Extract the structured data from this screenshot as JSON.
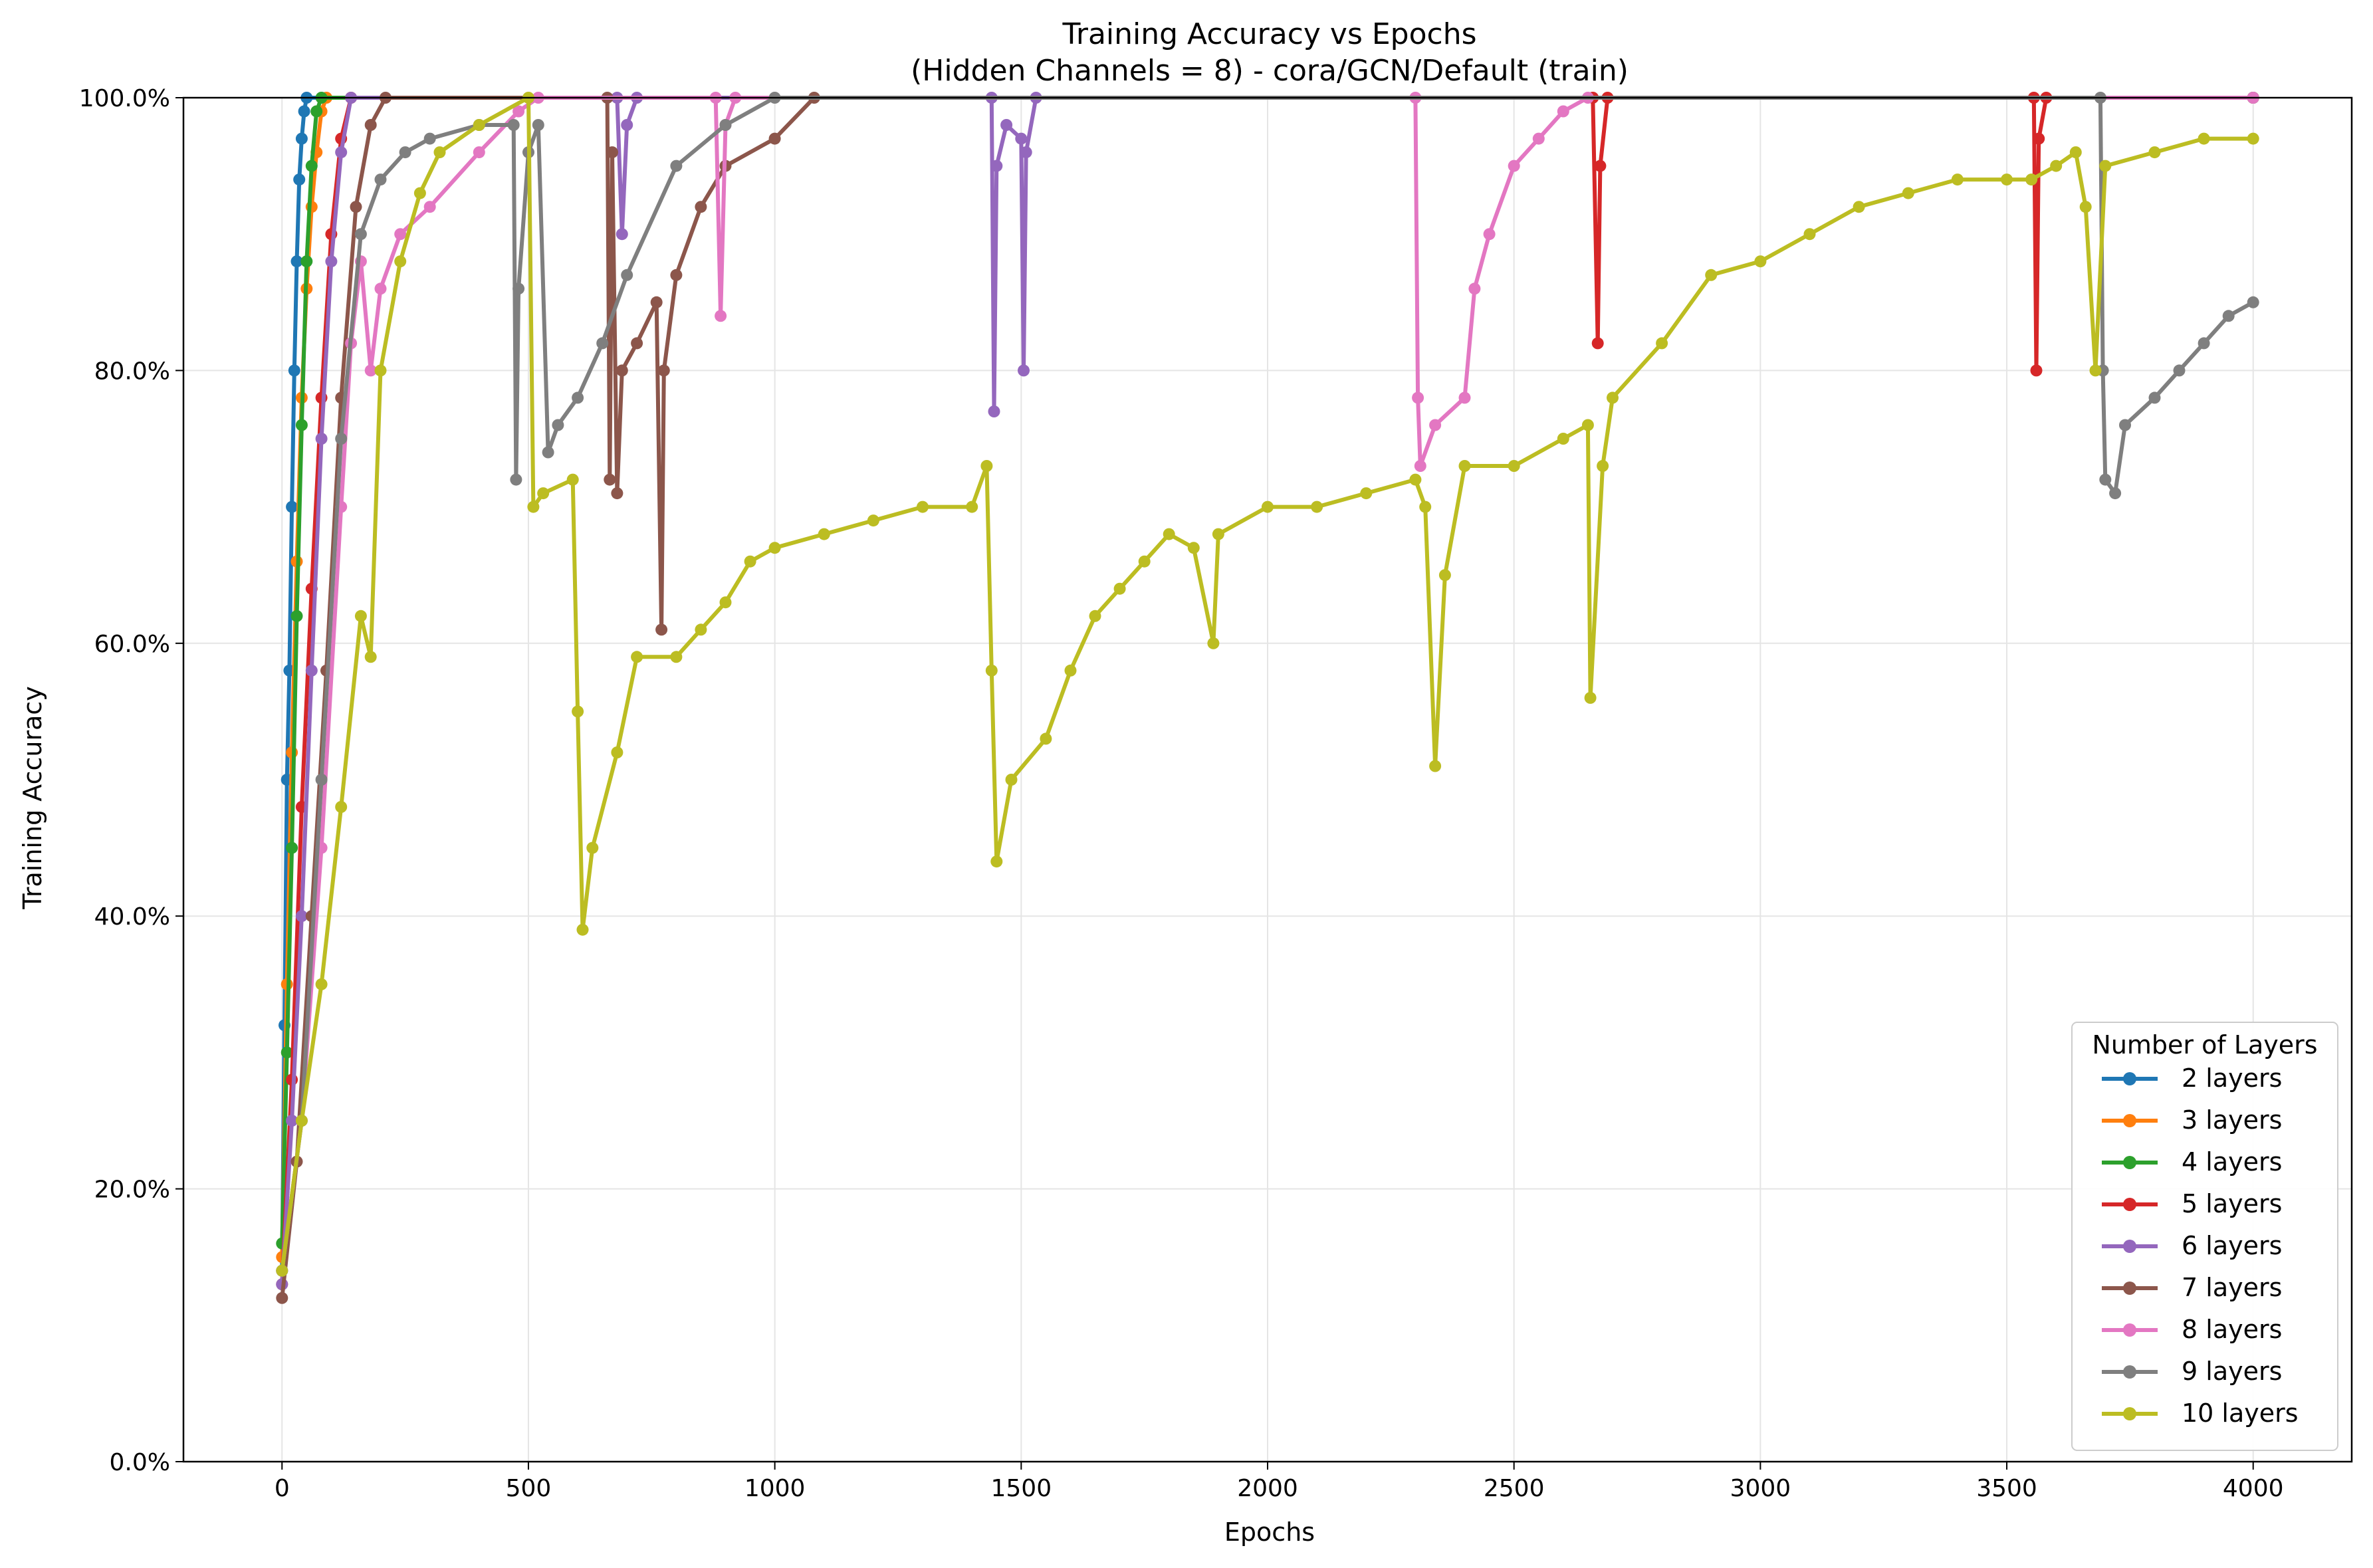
{
  "chart_data": {
    "type": "line",
    "title_line1": "Training Accuracy vs Epochs",
    "title_line2": "(Hidden Channels = 8) - cora/GCN/Default (train)",
    "xlabel": "Epochs",
    "ylabel": "Training Accuracy",
    "xlim": [
      -200,
      4200
    ],
    "ylim": [
      0,
      100
    ],
    "x_ticks": [
      0,
      500,
      1000,
      1500,
      2000,
      2500,
      3000,
      3500,
      4000
    ],
    "x_tick_labels": [
      "0",
      "500",
      "1000",
      "1500",
      "2000",
      "2500",
      "3000",
      "3500",
      "4000"
    ],
    "y_ticks": [
      0,
      20,
      40,
      60,
      80,
      100
    ],
    "y_tick_labels": [
      "0.0%",
      "20.0%",
      "40.0%",
      "60.0%",
      "80.0%",
      "100.0%"
    ],
    "grid": true,
    "legend": {
      "title": "Number of Layers",
      "placement": "lower-right"
    },
    "series": [
      {
        "name": "2 layers",
        "color": "#1f77b4",
        "points": [
          [
            0,
            14
          ],
          [
            5,
            32
          ],
          [
            10,
            50
          ],
          [
            15,
            58
          ],
          [
            20,
            70
          ],
          [
            25,
            80
          ],
          [
            30,
            88
          ],
          [
            35,
            94
          ],
          [
            40,
            97
          ],
          [
            45,
            99
          ],
          [
            50,
            100
          ],
          [
            4000,
            100
          ]
        ]
      },
      {
        "name": "3 layers",
        "color": "#ff7f0e",
        "points": [
          [
            0,
            15
          ],
          [
            10,
            35
          ],
          [
            20,
            52
          ],
          [
            30,
            66
          ],
          [
            40,
            78
          ],
          [
            50,
            86
          ],
          [
            60,
            92
          ],
          [
            70,
            96
          ],
          [
            80,
            99
          ],
          [
            90,
            100
          ],
          [
            4000,
            100
          ]
        ]
      },
      {
        "name": "4 layers",
        "color": "#2ca02c",
        "points": [
          [
            0,
            16
          ],
          [
            10,
            30
          ],
          [
            20,
            45
          ],
          [
            30,
            62
          ],
          [
            40,
            76
          ],
          [
            50,
            88
          ],
          [
            60,
            95
          ],
          [
            70,
            99
          ],
          [
            80,
            100
          ],
          [
            4000,
            100
          ]
        ]
      },
      {
        "name": "5 layers",
        "color": "#d62728",
        "points": [
          [
            0,
            13
          ],
          [
            20,
            28
          ],
          [
            40,
            48
          ],
          [
            60,
            64
          ],
          [
            80,
            78
          ],
          [
            100,
            90
          ],
          [
            120,
            97
          ],
          [
            140,
            100
          ],
          [
            2660,
            100
          ],
          [
            2670,
            82
          ],
          [
            2675,
            95
          ],
          [
            2690,
            100
          ],
          [
            3555,
            100
          ],
          [
            3560,
            80
          ],
          [
            3565,
            97
          ],
          [
            3580,
            100
          ],
          [
            4000,
            100
          ]
        ]
      },
      {
        "name": "6 layers",
        "color": "#9467bd",
        "points": [
          [
            0,
            13
          ],
          [
            20,
            25
          ],
          [
            40,
            40
          ],
          [
            60,
            58
          ],
          [
            80,
            75
          ],
          [
            100,
            88
          ],
          [
            120,
            96
          ],
          [
            140,
            100
          ],
          [
            680,
            100
          ],
          [
            690,
            90
          ],
          [
            700,
            98
          ],
          [
            720,
            100
          ],
          [
            1440,
            100
          ],
          [
            1445,
            77
          ],
          [
            1450,
            95
          ],
          [
            1470,
            98
          ],
          [
            1500,
            97
          ],
          [
            1505,
            80
          ],
          [
            1510,
            96
          ],
          [
            1530,
            100
          ],
          [
            4000,
            100
          ]
        ]
      },
      {
        "name": "7 layers",
        "color": "#8c564b",
        "points": [
          [
            0,
            12
          ],
          [
            30,
            22
          ],
          [
            60,
            40
          ],
          [
            90,
            58
          ],
          [
            120,
            78
          ],
          [
            150,
            92
          ],
          [
            180,
            98
          ],
          [
            210,
            100
          ],
          [
            660,
            100
          ],
          [
            665,
            72
          ],
          [
            670,
            96
          ],
          [
            680,
            71
          ],
          [
            690,
            80
          ],
          [
            720,
            82
          ],
          [
            760,
            85
          ],
          [
            770,
            61
          ],
          [
            775,
            80
          ],
          [
            800,
            87
          ],
          [
            850,
            92
          ],
          [
            900,
            95
          ],
          [
            1000,
            97
          ],
          [
            1080,
            100
          ],
          [
            4000,
            100
          ]
        ]
      },
      {
        "name": "8 layers",
        "color": "#e377c2",
        "points": [
          [
            0,
            14
          ],
          [
            40,
            25
          ],
          [
            80,
            45
          ],
          [
            120,
            70
          ],
          [
            140,
            82
          ],
          [
            160,
            88
          ],
          [
            180,
            80
          ],
          [
            200,
            86
          ],
          [
            240,
            90
          ],
          [
            300,
            92
          ],
          [
            400,
            96
          ],
          [
            480,
            99
          ],
          [
            520,
            100
          ],
          [
            880,
            100
          ],
          [
            890,
            84
          ],
          [
            900,
            98
          ],
          [
            920,
            100
          ],
          [
            2300,
            100
          ],
          [
            2305,
            78
          ],
          [
            2310,
            73
          ],
          [
            2340,
            76
          ],
          [
            2400,
            78
          ],
          [
            2420,
            86
          ],
          [
            2450,
            90
          ],
          [
            2500,
            95
          ],
          [
            2550,
            97
          ],
          [
            2600,
            99
          ],
          [
            2650,
            100
          ],
          [
            4000,
            100
          ]
        ]
      },
      {
        "name": "9 layers",
        "color": "#7f7f7f",
        "points": [
          [
            0,
            14
          ],
          [
            40,
            25
          ],
          [
            80,
            50
          ],
          [
            120,
            75
          ],
          [
            160,
            90
          ],
          [
            200,
            94
          ],
          [
            250,
            96
          ],
          [
            300,
            97
          ],
          [
            400,
            98
          ],
          [
            470,
            98
          ],
          [
            475,
            72
          ],
          [
            480,
            86
          ],
          [
            500,
            96
          ],
          [
            520,
            98
          ],
          [
            540,
            74
          ],
          [
            560,
            76
          ],
          [
            600,
            78
          ],
          [
            650,
            82
          ],
          [
            700,
            87
          ],
          [
            800,
            95
          ],
          [
            900,
            98
          ],
          [
            1000,
            100
          ],
          [
            3690,
            100
          ],
          [
            3695,
            80
          ],
          [
            3700,
            72
          ],
          [
            3720,
            71
          ],
          [
            3740,
            76
          ],
          [
            3800,
            78
          ],
          [
            3850,
            80
          ],
          [
            3900,
            82
          ],
          [
            3950,
            84
          ],
          [
            4000,
            85
          ]
        ]
      },
      {
        "name": "10 layers",
        "color": "#bcbd22",
        "points": [
          [
            0,
            14
          ],
          [
            40,
            25
          ],
          [
            80,
            35
          ],
          [
            120,
            48
          ],
          [
            160,
            62
          ],
          [
            180,
            59
          ],
          [
            200,
            80
          ],
          [
            240,
            88
          ],
          [
            280,
            93
          ],
          [
            320,
            96
          ],
          [
            400,
            98
          ],
          [
            500,
            100
          ],
          [
            510,
            70
          ],
          [
            530,
            71
          ],
          [
            590,
            72
          ],
          [
            600,
            55
          ],
          [
            610,
            39
          ],
          [
            630,
            45
          ],
          [
            680,
            52
          ],
          [
            720,
            59
          ],
          [
            800,
            59
          ],
          [
            850,
            61
          ],
          [
            900,
            63
          ],
          [
            950,
            66
          ],
          [
            1000,
            67
          ],
          [
            1100,
            68
          ],
          [
            1200,
            69
          ],
          [
            1300,
            70
          ],
          [
            1400,
            70
          ],
          [
            1430,
            73
          ],
          [
            1440,
            58
          ],
          [
            1450,
            44
          ],
          [
            1480,
            50
          ],
          [
            1550,
            53
          ],
          [
            1600,
            58
          ],
          [
            1650,
            62
          ],
          [
            1700,
            64
          ],
          [
            1750,
            66
          ],
          [
            1800,
            68
          ],
          [
            1850,
            67
          ],
          [
            1890,
            60
          ],
          [
            1900,
            68
          ],
          [
            2000,
            70
          ],
          [
            2100,
            70
          ],
          [
            2200,
            71
          ],
          [
            2300,
            72
          ],
          [
            2320,
            70
          ],
          [
            2340,
            51
          ],
          [
            2360,
            65
          ],
          [
            2400,
            73
          ],
          [
            2500,
            73
          ],
          [
            2600,
            75
          ],
          [
            2650,
            76
          ],
          [
            2655,
            56
          ],
          [
            2680,
            73
          ],
          [
            2700,
            78
          ],
          [
            2800,
            82
          ],
          [
            2900,
            87
          ],
          [
            3000,
            88
          ],
          [
            3100,
            90
          ],
          [
            3200,
            92
          ],
          [
            3300,
            93
          ],
          [
            3400,
            94
          ],
          [
            3500,
            94
          ],
          [
            3550,
            94
          ],
          [
            3600,
            95
          ],
          [
            3640,
            96
          ],
          [
            3660,
            92
          ],
          [
            3680,
            80
          ],
          [
            3700,
            95
          ],
          [
            3800,
            96
          ],
          [
            3900,
            97
          ],
          [
            4000,
            97
          ]
        ]
      }
    ]
  }
}
